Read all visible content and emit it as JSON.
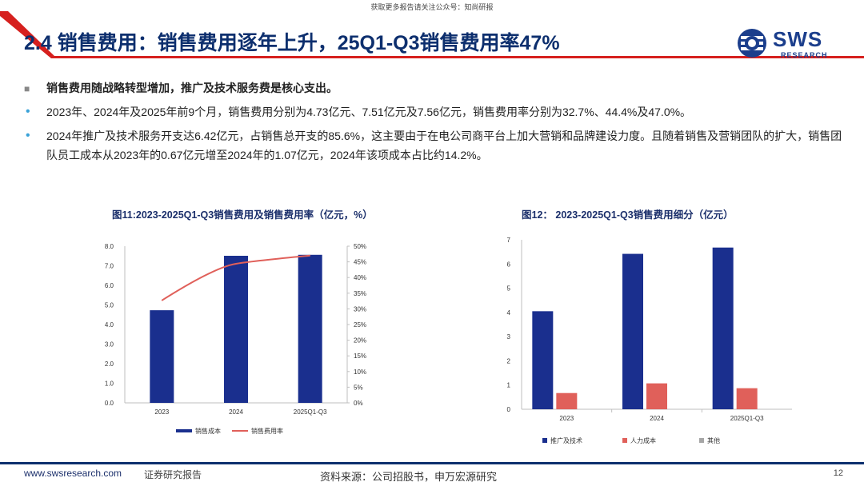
{
  "watermark": "获取更多报告请关注公众号：知尚研报",
  "header": {
    "title": "2.4 销售费用：销售费用逐年上升，25Q1-Q3销售费用率47%",
    "logo_text": "SWS",
    "logo_sub": "RESEARCH",
    "accent_color": "#0d2f6e",
    "stripe_color": "#d6201e"
  },
  "bullets": [
    {
      "kind": "lead",
      "marker": "■",
      "text": "销售费用随战略转型增加，推广及技术服务费是核心支出。"
    },
    {
      "kind": "sub",
      "marker": "•",
      "text": "2023年、2024年及2025年前9个月，销售费用分别为4.73亿元、7.51亿元及7.56亿元，销售费用率分别为32.7%、44.4%及47.0%。"
    },
    {
      "kind": "sub",
      "marker": "•",
      "text": "2024年推广及技术服务开支达6.42亿元，占销售总开支的85.6%，这主要由于在电公司商平台上加大营销和品牌建设力度。且随着销售及营销团队的扩大，销售团队员工成本从2023年的0.67亿元增至2024年的1.07亿元，2024年该项成本占比约14.2%。"
    }
  ],
  "chart_data": [
    {
      "type": "bar",
      "title": "图11:2023-2025Q1-Q3销售费用及销售费用率（亿元，%）",
      "categories": [
        "2023",
        "2024",
        "2025Q1-Q3"
      ],
      "series": [
        {
          "name": "销售成本",
          "type": "bar",
          "axis": "left",
          "color": "#1a2f8e",
          "values": [
            4.73,
            7.51,
            7.56
          ]
        },
        {
          "name": "销售费用率",
          "type": "line",
          "axis": "right",
          "color": "#e0605a",
          "values": [
            32.7,
            44.4,
            47.0
          ]
        }
      ],
      "y_left": {
        "min": 0,
        "max": 8,
        "ticks": [
          "0.0",
          "1.0",
          "2.0",
          "3.0",
          "4.0",
          "5.0",
          "6.0",
          "7.0",
          "8.0"
        ]
      },
      "y_right": {
        "min": 0,
        "max": 50,
        "ticks": [
          "0%",
          "5%",
          "10%",
          "15%",
          "20%",
          "25%",
          "30%",
          "35%",
          "40%",
          "45%",
          "50%"
        ]
      },
      "legend_position": "bottom",
      "grid": false
    },
    {
      "type": "bar",
      "title": "图12： 2023-2025Q1-Q3销售费用细分（亿元）",
      "categories": [
        "2023",
        "2024",
        "2025Q1-Q3"
      ],
      "series": [
        {
          "name": "推广及技术",
          "color": "#1a2f8e",
          "values": [
            4.05,
            6.42,
            6.68
          ]
        },
        {
          "name": "人力成本",
          "color": "#e0605a",
          "values": [
            0.67,
            1.07,
            0.87
          ]
        },
        {
          "name": "其他",
          "color": "#a6a6a6",
          "values": [
            0,
            0,
            0
          ]
        }
      ],
      "y_left": {
        "min": 0,
        "max": 7,
        "ticks": [
          "0",
          "1",
          "2",
          "3",
          "4",
          "5",
          "6",
          "7"
        ]
      },
      "legend_position": "bottom",
      "grid": false
    }
  ],
  "footer": {
    "site": "www.swsresearch.com",
    "label": "证券研究报告",
    "source": "资料来源：公司招股书，申万宏源研究",
    "page": "12"
  }
}
